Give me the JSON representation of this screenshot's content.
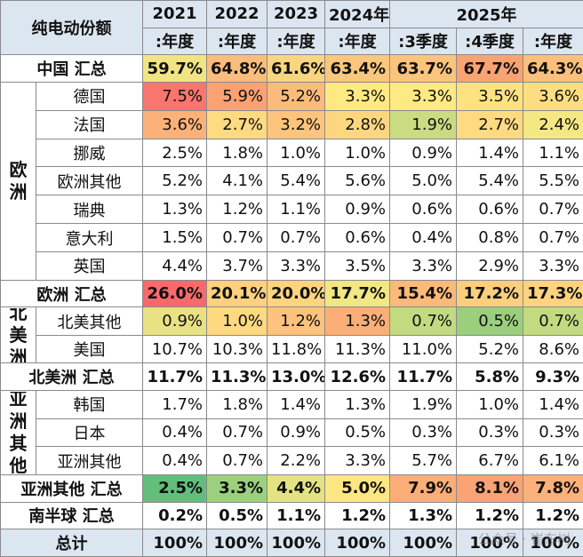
{
  "table": {
    "corner": "纯电动份额",
    "years": [
      "2021",
      "2022",
      "2023",
      "2024年",
      "2025年"
    ],
    "subheaders": [
      ":年度",
      ":年度",
      ":年度",
      ":年度",
      ":3季度",
      ":4季度",
      ":年度"
    ],
    "sections": [
      {
        "label": "中国 汇总",
        "style": "total",
        "values": [
          "59.7%",
          "64.8%",
          "61.6%",
          "63.4%",
          "63.7%",
          "67.7%",
          "64.3%"
        ],
        "colors": [
          "#f1e583",
          "#fbbd7b",
          "#f8d57f",
          "#fbc77d",
          "#fbc47c",
          "#f9a373",
          "#fbc07b"
        ]
      },
      {
        "group": "欧洲",
        "rows": [
          {
            "label": "德国",
            "values": [
              "7.5%",
              "5.9%",
              "5.2%",
              "3.3%",
              "3.3%",
              "3.5%",
              "3.6%"
            ],
            "colors": [
              "#f8766d",
              "#faa273",
              "#fbbc7b",
              "#fee983",
              "#fee983",
              "#fde282",
              "#fddd81"
            ]
          },
          {
            "label": "法国",
            "values": [
              "3.6%",
              "2.7%",
              "3.2%",
              "2.8%",
              "1.9%",
              "2.7%",
              "2.4%"
            ],
            "colors": [
              "#fbb178",
              "#fedb81",
              "#fcc47c",
              "#fdd780",
              "#c9dc81",
              "#fedb81",
              "#f4e884"
            ]
          },
          {
            "label": "挪威",
            "values": [
              "2.5%",
              "1.8%",
              "1.0%",
              "1.0%",
              "0.9%",
              "1.4%",
              "1.1%"
            ]
          },
          {
            "label": "欧洲其他",
            "values": [
              "5.2%",
              "4.1%",
              "5.4%",
              "5.6%",
              "5.0%",
              "5.4%",
              "5.5%"
            ]
          },
          {
            "label": "瑞典",
            "values": [
              "1.3%",
              "1.2%",
              "1.1%",
              "0.9%",
              "0.6%",
              "0.6%",
              "0.7%"
            ]
          },
          {
            "label": "意大利",
            "values": [
              "1.5%",
              "0.7%",
              "0.7%",
              "0.6%",
              "0.4%",
              "0.8%",
              "0.7%"
            ]
          },
          {
            "label": "英国",
            "values": [
              "4.4%",
              "3.7%",
              "3.3%",
              "3.5%",
              "3.3%",
              "2.9%",
              "3.3%"
            ]
          }
        ]
      },
      {
        "label": "欧洲 汇总",
        "style": "total",
        "values": [
          "26.0%",
          "20.1%",
          "20.0%",
          "17.7%",
          "15.4%",
          "17.2%",
          "17.3%"
        ],
        "colors": [
          "#f8696b",
          "#fed07f",
          "#fed47f",
          "#f1e784",
          "#fbb97a",
          "#fccf7e",
          "#fed380"
        ]
      },
      {
        "group": "北美洲",
        "rows": [
          {
            "label": "北美其他",
            "values": [
              "0.9%",
              "1.0%",
              "1.2%",
              "1.3%",
              "0.7%",
              "0.5%",
              "0.7%"
            ],
            "colors": [
              "#e8e283",
              "#fed980",
              "#fdc27d",
              "#fbae78",
              "#c2da80",
              "#9bcf7e",
              "#c2da80"
            ]
          },
          {
            "label": "美国",
            "values": [
              "10.7%",
              "10.3%",
              "11.8%",
              "11.3%",
              "11.0%",
              "5.2%",
              "8.6%"
            ]
          }
        ]
      },
      {
        "label": "北美洲 汇总",
        "style": "total",
        "values": [
          "11.7%",
          "11.3%",
          "13.0%",
          "12.6%",
          "11.7%",
          "5.8%",
          "9.3%"
        ]
      },
      {
        "group": "亚洲其他",
        "rows": [
          {
            "label": "韩国",
            "values": [
              "1.7%",
              "1.8%",
              "1.4%",
              "1.3%",
              "1.9%",
              "1.0%",
              "1.4%"
            ]
          },
          {
            "label": "日本",
            "values": [
              "0.4%",
              "0.7%",
              "0.9%",
              "0.5%",
              "0.3%",
              "0.3%",
              "0.3%"
            ]
          },
          {
            "label": "亚洲其他",
            "values": [
              "0.4%",
              "0.7%",
              "2.2%",
              "3.3%",
              "5.7%",
              "6.7%",
              "6.1%"
            ]
          }
        ]
      },
      {
        "label": "亚洲其他 汇总",
        "style": "total",
        "values": [
          "2.5%",
          "3.3%",
          "4.4%",
          "5.0%",
          "7.9%",
          "8.1%",
          "7.8%"
        ],
        "colors": [
          "#63be7b",
          "#9bd07e",
          "#e4e383",
          "#fee783",
          "#fcae78",
          "#fba276",
          "#fbb179"
        ]
      },
      {
        "label": "南半球 汇总",
        "style": "total",
        "values": [
          "0.2%",
          "0.5%",
          "1.1%",
          "1.2%",
          "1.3%",
          "1.2%",
          "1.2%"
        ]
      },
      {
        "label": "总计",
        "style": "grand",
        "values": [
          "100%",
          "100%",
          "100%",
          "100%",
          "100%",
          "100%",
          "100%"
        ]
      }
    ],
    "watermark": "公众号 · 崔东树"
  }
}
